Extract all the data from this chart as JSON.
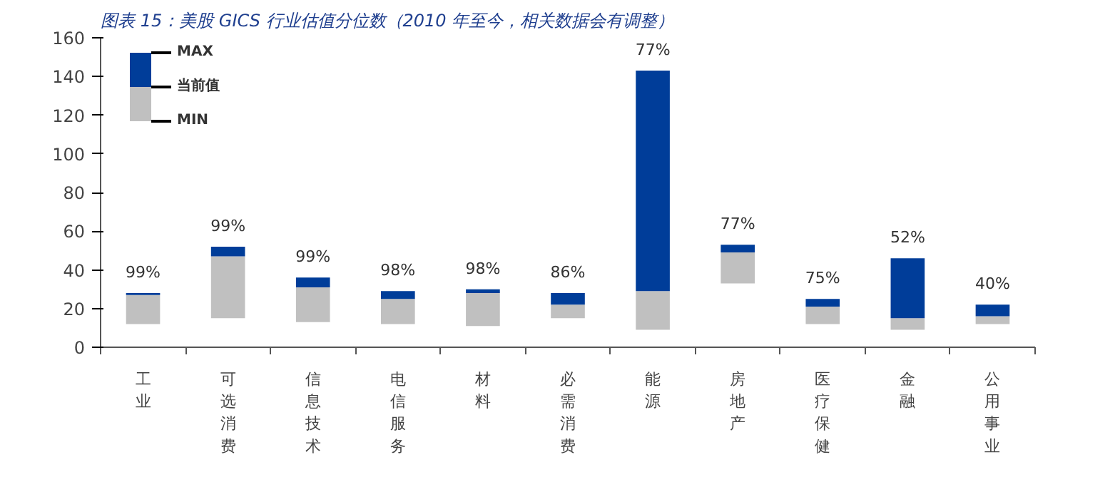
{
  "chart_data": {
    "type": "bar",
    "title": "图表 15：美股 GICS 行业估值分位数（2010 年至今，相关数据会有调整）",
    "categories": [
      "工业",
      "可选消费",
      "信息技术",
      "电信服务",
      "材料",
      "必需消费",
      "能源",
      "房地产",
      "医疗保健",
      "金融",
      "公用事业"
    ],
    "series": [
      {
        "color": "#c0c0c0",
        "base": [
          12,
          15,
          13,
          12,
          11,
          15,
          9,
          33,
          12,
          9,
          12
        ],
        "values": [
          15,
          32,
          18,
          13,
          17,
          7,
          20,
          16,
          9,
          6,
          4
        ]
      },
      {
        "color": "#003d99",
        "base": [
          27,
          47,
          31,
          25,
          28,
          22,
          29,
          49,
          21,
          15,
          16
        ],
        "values": [
          1,
          5,
          5,
          4,
          2,
          6,
          114,
          4,
          4,
          31,
          6
        ]
      }
    ],
    "value_labels": [
      "99%",
      "99%",
      "99%",
      "98%",
      "98%",
      "86%",
      "77%",
      "77%",
      "75%",
      "52%",
      "40%"
    ],
    "annotations": [
      "MAX",
      "当前值",
      "MIN"
    ],
    "ylim": [
      0,
      160
    ],
    "yticks": [
      0,
      20,
      40,
      60,
      80,
      100,
      120,
      140,
      160
    ],
    "grid": false
  }
}
